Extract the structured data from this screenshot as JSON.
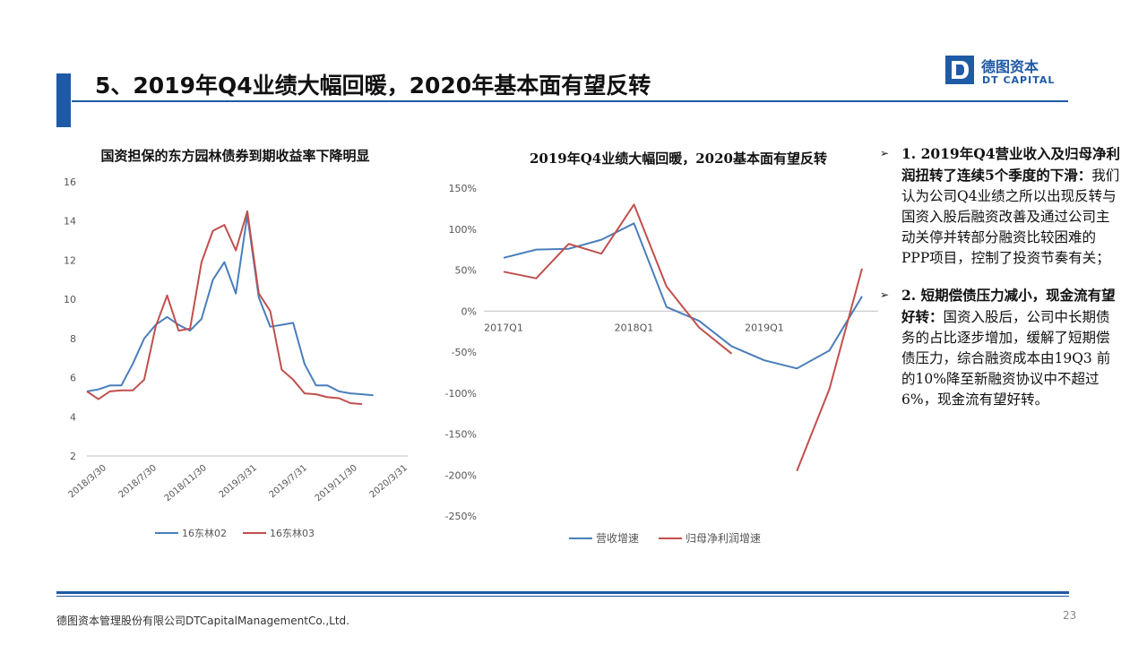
{
  "header": {
    "title": "5、2019年Q4业绩大幅回暖，2020年基本面有望反转",
    "logo_cn": "德图资本",
    "logo_en": "DT CAPITAL"
  },
  "colors": {
    "brand": "#1f5aa6",
    "series_blue": "#4a7ebb",
    "series_red": "#c0504d"
  },
  "chart_data": [
    {
      "type": "line",
      "title": "国资担保的东方园林债券到期收益率下降明显",
      "x_ticks": [
        "2018/3/30",
        "2018/7/30",
        "2018/11/30",
        "2019/3/31",
        "2019/7/31",
        "2019/11/30",
        "2020/3/31"
      ],
      "ylim": [
        2,
        16
      ],
      "y_ticks": [
        2,
        4,
        6,
        8,
        10,
        12,
        14,
        16
      ],
      "legend_position": "bottom",
      "n_points": 29,
      "series": [
        {
          "name": "16东林02",
          "color": "#4a7ebb",
          "values": [
            5.3,
            5.4,
            5.6,
            5.6,
            6.7,
            8.0,
            8.7,
            9.1,
            8.7,
            8.4,
            9.0,
            11.0,
            11.9,
            10.3,
            14.3,
            10.1,
            8.6,
            8.7,
            8.8,
            6.7,
            5.6,
            5.6,
            5.3,
            5.2,
            5.15,
            5.1,
            null,
            null,
            null
          ]
        },
        {
          "name": "16东林03",
          "color": "#c0504d",
          "values": [
            5.3,
            4.9,
            5.3,
            5.35,
            5.35,
            5.9,
            8.6,
            10.2,
            8.4,
            8.5,
            11.9,
            13.5,
            13.8,
            12.5,
            14.5,
            10.3,
            9.4,
            6.4,
            5.9,
            5.2,
            5.15,
            5.0,
            4.95,
            4.7,
            4.65,
            null,
            null,
            null,
            null
          ]
        }
      ]
    },
    {
      "type": "line",
      "title": "2019年Q4业绩大幅回暖，2020基本面有望反转",
      "x_ticks": [
        "2017Q1",
        "2018Q1",
        "2019Q1"
      ],
      "ylim": [
        -250,
        150
      ],
      "y_ticks": [
        "150%",
        "100%",
        "50%",
        "0%",
        "-50%",
        "-100%",
        "-150%",
        "-200%",
        "-250%"
      ],
      "legend_position": "bottom",
      "series": [
        {
          "name": "营收增速",
          "color": "#4a7ebb",
          "values": [
            65,
            75,
            76,
            87,
            107,
            5,
            -12,
            -43,
            -60,
            -70,
            -48,
            18
          ]
        },
        {
          "name": "归母净利润增速",
          "color": "#c0504d",
          "segments": [
            {
              "start_index": 0,
              "values": [
                48,
                40,
                82,
                70,
                130,
                30,
                -20,
                -52
              ]
            },
            {
              "start_index": 9,
              "values": [
                -195,
                -95,
                52
              ]
            }
          ]
        }
      ]
    }
  ],
  "bullets": [
    {
      "head": "1. 2019年Q4营业收入及归母净利润扭转了连续5个季度的下滑：",
      "body": "我们认为公司Q4业绩之所以出现反转与国资入股后融资改善及通过公司主动关停并转部分融资比较困难的PPP项目，控制了投资节奏有关；"
    },
    {
      "head": "2. 短期偿债压力减小，现金流有望好转：",
      "body": "国资入股后，公司中长期债务的占比逐步增加，缓解了短期偿债压力，综合融资成本由19Q3 前的10%降至新融资协议中不超过6%，现金流有望好转。"
    }
  ],
  "footer": {
    "company": "德图资本管理股份有限公司DTCapitalManagementCo.,Ltd.",
    "page": "23"
  }
}
